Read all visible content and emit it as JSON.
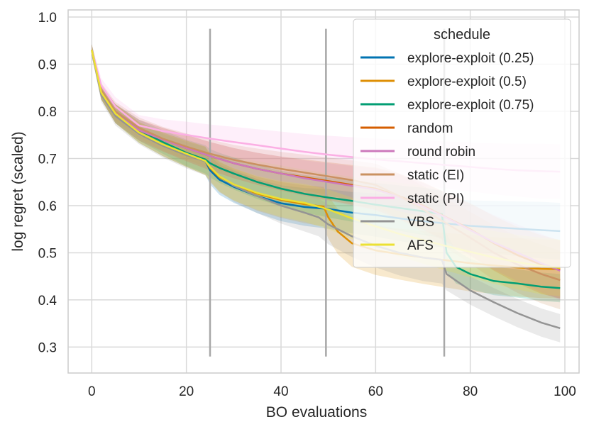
{
  "chart_data": {
    "type": "line",
    "xlabel": "BO evaluations",
    "ylabel": "log regret (scaled)",
    "xlim": [
      -5,
      103
    ],
    "ylim": [
      0.245,
      1.015
    ],
    "x_ticks": [
      0,
      20,
      40,
      60,
      80,
      100
    ],
    "y_ticks": [
      0.3,
      0.4,
      0.5,
      0.6,
      0.7,
      0.8,
      0.9,
      1.0
    ],
    "x_tick_labels": [
      "0",
      "20",
      "40",
      "60",
      "80",
      "100"
    ],
    "y_tick_labels": [
      "0.3",
      "0.4",
      "0.5",
      "0.6",
      "0.7",
      "0.8",
      "0.9",
      "1.0"
    ],
    "grid": true,
    "vertical_lines": [
      {
        "x": 25,
        "y_range": [
          0.28,
          0.975
        ]
      },
      {
        "x": 49.5,
        "y_range": [
          0.28,
          0.975
        ]
      },
      {
        "x": 74.5,
        "y_range": [
          0.28,
          0.975
        ]
      }
    ],
    "legend": {
      "title": "schedule",
      "placement": "top-right"
    },
    "series": [
      {
        "name": "explore-exploit (0.25)",
        "color": "#0173b2",
        "x": [
          0,
          2,
          5,
          10,
          15,
          20,
          24,
          25,
          27,
          30,
          35,
          40,
          45,
          50,
          55,
          60,
          65,
          70,
          75,
          80,
          85,
          90,
          95,
          99
        ],
        "y": [
          0.93,
          0.84,
          0.795,
          0.755,
          0.73,
          0.71,
          0.695,
          0.675,
          0.655,
          0.64,
          0.62,
          0.605,
          0.597,
          0.593,
          0.585,
          0.58,
          0.573,
          0.567,
          0.562,
          0.557,
          0.554,
          0.551,
          0.548,
          0.546
        ],
        "band": [
          0.012,
          0.015,
          0.02,
          0.022,
          0.025,
          0.028,
          0.03,
          0.03,
          0.032,
          0.034,
          0.036,
          0.038,
          0.04,
          0.042,
          0.044,
          0.046,
          0.048,
          0.05,
          0.052,
          0.054,
          0.056,
          0.058,
          0.06,
          0.06
        ]
      },
      {
        "name": "explore-exploit (0.5)",
        "color": "#de8f05",
        "x": [
          0,
          2,
          5,
          10,
          15,
          20,
          24,
          25,
          27,
          30,
          35,
          40,
          45,
          49,
          50,
          52,
          55,
          60,
          65,
          70,
          75,
          80,
          85,
          90,
          95,
          99
        ],
        "y": [
          0.93,
          0.84,
          0.795,
          0.755,
          0.73,
          0.71,
          0.695,
          0.68,
          0.66,
          0.645,
          0.625,
          0.612,
          0.603,
          0.598,
          0.575,
          0.545,
          0.52,
          0.505,
          0.497,
          0.49,
          0.484,
          0.478,
          0.473,
          0.469,
          0.466,
          0.465
        ],
        "band": [
          0.012,
          0.015,
          0.02,
          0.022,
          0.025,
          0.028,
          0.03,
          0.03,
          0.032,
          0.034,
          0.036,
          0.038,
          0.04,
          0.042,
          0.045,
          0.048,
          0.05,
          0.052,
          0.054,
          0.056,
          0.058,
          0.06,
          0.06,
          0.062,
          0.062,
          0.062
        ]
      },
      {
        "name": "explore-exploit (0.75)",
        "color": "#029e73",
        "x": [
          0,
          2,
          5,
          10,
          15,
          20,
          24,
          25,
          27,
          30,
          35,
          40,
          45,
          50,
          55,
          60,
          65,
          70,
          74,
          75,
          77,
          80,
          85,
          90,
          95,
          99
        ],
        "y": [
          0.93,
          0.84,
          0.795,
          0.76,
          0.735,
          0.712,
          0.698,
          0.69,
          0.68,
          0.668,
          0.65,
          0.636,
          0.625,
          0.617,
          0.61,
          0.602,
          0.595,
          0.588,
          0.582,
          0.5,
          0.47,
          0.455,
          0.44,
          0.435,
          0.428,
          0.425
        ],
        "band": [
          0.012,
          0.015,
          0.02,
          0.022,
          0.025,
          0.028,
          0.03,
          0.03,
          0.032,
          0.034,
          0.036,
          0.038,
          0.04,
          0.042,
          0.044,
          0.046,
          0.048,
          0.05,
          0.05,
          0.04,
          0.035,
          0.032,
          0.03,
          0.03,
          0.03,
          0.03
        ]
      },
      {
        "name": "random",
        "color": "#d55e00",
        "x": [
          0,
          2,
          5,
          10,
          15,
          20,
          25,
          30,
          35,
          40,
          45,
          50,
          55,
          60,
          65,
          70,
          75,
          80,
          85,
          90,
          95,
          99
        ],
        "y": [
          0.93,
          0.84,
          0.795,
          0.76,
          0.74,
          0.722,
          0.705,
          0.69,
          0.678,
          0.668,
          0.66,
          0.652,
          0.644,
          0.636,
          0.62,
          0.6,
          0.575,
          0.55,
          0.52,
          0.495,
          0.475,
          0.465
        ],
        "band": [
          0.012,
          0.015,
          0.02,
          0.022,
          0.025,
          0.028,
          0.03,
          0.032,
          0.034,
          0.036,
          0.038,
          0.04,
          0.042,
          0.045,
          0.048,
          0.05,
          0.052,
          0.055,
          0.058,
          0.06,
          0.062,
          0.062
        ]
      },
      {
        "name": "round robin",
        "color": "#cc78bc",
        "x": [
          0,
          2,
          5,
          10,
          15,
          20,
          25,
          30,
          35,
          40,
          45,
          50,
          55,
          60,
          65,
          70,
          75,
          80,
          85,
          90,
          95,
          99
        ],
        "y": [
          0.93,
          0.84,
          0.795,
          0.76,
          0.74,
          0.722,
          0.705,
          0.69,
          0.678,
          0.668,
          0.658,
          0.65,
          0.642,
          0.634,
          0.618,
          0.598,
          0.574,
          0.548,
          0.522,
          0.5,
          0.478,
          0.462
        ],
        "band": [
          0.012,
          0.015,
          0.02,
          0.022,
          0.025,
          0.028,
          0.03,
          0.032,
          0.034,
          0.036,
          0.038,
          0.04,
          0.042,
          0.045,
          0.048,
          0.05,
          0.052,
          0.055,
          0.058,
          0.06,
          0.062,
          0.062
        ]
      },
      {
        "name": "static (EI)",
        "color": "#ca9161",
        "x": [
          0,
          2,
          5,
          10,
          15,
          20,
          25,
          30,
          35,
          40,
          45,
          50,
          55,
          60,
          65,
          70,
          75,
          80,
          85,
          90,
          95,
          99
        ],
        "y": [
          0.93,
          0.845,
          0.8,
          0.765,
          0.742,
          0.725,
          0.71,
          0.697,
          0.687,
          0.678,
          0.67,
          0.662,
          0.654,
          0.644,
          0.62,
          0.592,
          0.562,
          0.532,
          0.5,
          0.475,
          0.455,
          0.442
        ],
        "band": [
          0.012,
          0.015,
          0.02,
          0.022,
          0.025,
          0.028,
          0.03,
          0.032,
          0.034,
          0.036,
          0.038,
          0.04,
          0.042,
          0.045,
          0.048,
          0.05,
          0.052,
          0.055,
          0.058,
          0.06,
          0.062,
          0.062
        ]
      },
      {
        "name": "static (PI)",
        "color": "#fbafe4",
        "x": [
          0,
          2,
          5,
          10,
          15,
          20,
          25,
          30,
          35,
          40,
          45,
          50,
          55,
          60,
          65,
          70,
          75,
          80,
          85,
          90,
          95,
          99
        ],
        "y": [
          0.93,
          0.855,
          0.81,
          0.77,
          0.758,
          0.75,
          0.742,
          0.735,
          0.728,
          0.721,
          0.714,
          0.708,
          0.703,
          0.698,
          0.694,
          0.69,
          0.686,
          0.682,
          0.678,
          0.675,
          0.673,
          0.672
        ],
        "band": [
          0.012,
          0.015,
          0.02,
          0.022,
          0.025,
          0.028,
          0.03,
          0.032,
          0.034,
          0.036,
          0.038,
          0.04,
          0.042,
          0.044,
          0.046,
          0.048,
          0.05,
          0.052,
          0.054,
          0.056,
          0.058,
          0.058
        ]
      },
      {
        "name": "VBS",
        "color": "#949494",
        "x": [
          0,
          2,
          5,
          10,
          15,
          20,
          24,
          25,
          27,
          30,
          35,
          40,
          45,
          48,
          50,
          55,
          60,
          65,
          70,
          74,
          75,
          80,
          85,
          90,
          95,
          99
        ],
        "y": [
          0.93,
          0.835,
          0.79,
          0.752,
          0.727,
          0.707,
          0.694,
          0.682,
          0.662,
          0.642,
          0.62,
          0.6,
          0.585,
          0.575,
          0.56,
          0.535,
          0.515,
          0.5,
          0.49,
          0.485,
          0.455,
          0.42,
          0.395,
          0.372,
          0.352,
          0.34
        ],
        "band": [
          0.012,
          0.015,
          0.02,
          0.022,
          0.025,
          0.028,
          0.03,
          0.03,
          0.032,
          0.034,
          0.036,
          0.038,
          0.04,
          0.04,
          0.042,
          0.044,
          0.046,
          0.048,
          0.05,
          0.05,
          0.035,
          0.03,
          0.03,
          0.03,
          0.03,
          0.03
        ]
      },
      {
        "name": "AFS",
        "color": "#ece133",
        "x": [
          0,
          2,
          5,
          10,
          15,
          20,
          24,
          25,
          27,
          30,
          35,
          40,
          45,
          50,
          55,
          60,
          65,
          70,
          75,
          80,
          85,
          90,
          95,
          99
        ],
        "y": [
          0.93,
          0.84,
          0.795,
          0.755,
          0.73,
          0.71,
          0.695,
          0.682,
          0.662,
          0.645,
          0.627,
          0.614,
          0.606,
          0.592,
          0.573,
          0.556,
          0.54,
          0.527,
          0.514,
          0.502,
          0.49,
          0.48,
          0.472,
          0.468
        ],
        "band": [
          0.012,
          0.015,
          0.02,
          0.022,
          0.025,
          0.028,
          0.03,
          0.03,
          0.032,
          0.034,
          0.036,
          0.038,
          0.04,
          0.042,
          0.044,
          0.046,
          0.048,
          0.05,
          0.052,
          0.054,
          0.056,
          0.058,
          0.06,
          0.06
        ]
      }
    ]
  }
}
